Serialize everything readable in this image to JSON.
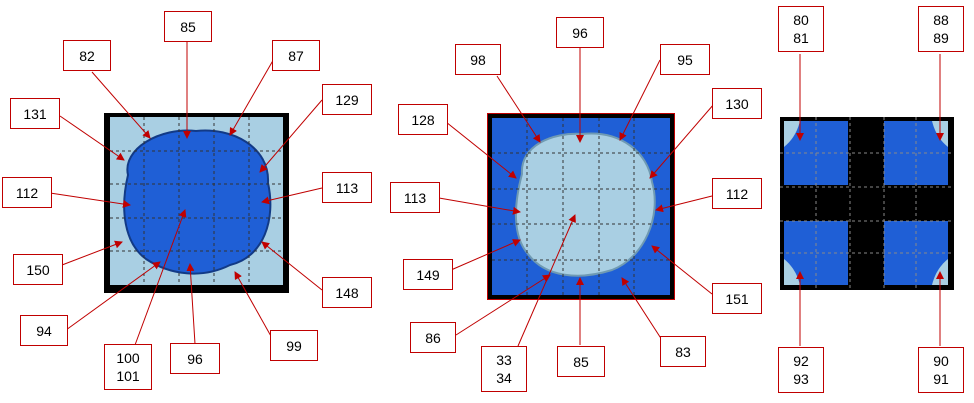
{
  "panels": [
    {
      "id": "p1",
      "labels": [
        {
          "id": "l82",
          "lines": [
            "82"
          ]
        },
        {
          "id": "l85",
          "lines": [
            "85"
          ]
        },
        {
          "id": "l87",
          "lines": [
            "87"
          ]
        },
        {
          "id": "l131",
          "lines": [
            "131"
          ]
        },
        {
          "id": "l129",
          "lines": [
            "129"
          ]
        },
        {
          "id": "l112",
          "lines": [
            "112"
          ]
        },
        {
          "id": "l113",
          "lines": [
            "113"
          ]
        },
        {
          "id": "l150",
          "lines": [
            "150"
          ]
        },
        {
          "id": "l148",
          "lines": [
            "148"
          ]
        },
        {
          "id": "l94",
          "lines": [
            "94"
          ]
        },
        {
          "id": "l100",
          "lines": [
            "100",
            "101"
          ]
        },
        {
          "id": "l96",
          "lines": [
            "96"
          ]
        },
        {
          "id": "l99",
          "lines": [
            "99"
          ]
        }
      ]
    },
    {
      "id": "p2",
      "labels": [
        {
          "id": "l98",
          "lines": [
            "98"
          ]
        },
        {
          "id": "l96b",
          "lines": [
            "96"
          ]
        },
        {
          "id": "l95",
          "lines": [
            "95"
          ]
        },
        {
          "id": "l128",
          "lines": [
            "128"
          ]
        },
        {
          "id": "l130",
          "lines": [
            "130"
          ]
        },
        {
          "id": "l113b",
          "lines": [
            "113"
          ]
        },
        {
          "id": "l112b",
          "lines": [
            "112"
          ]
        },
        {
          "id": "l149",
          "lines": [
            "149"
          ]
        },
        {
          "id": "l151",
          "lines": [
            "151"
          ]
        },
        {
          "id": "l86",
          "lines": [
            "86"
          ]
        },
        {
          "id": "l33",
          "lines": [
            "33",
            "34"
          ]
        },
        {
          "id": "l85b",
          "lines": [
            "85"
          ]
        },
        {
          "id": "l83",
          "lines": [
            "83"
          ]
        }
      ]
    },
    {
      "id": "p3",
      "labels": [
        {
          "id": "l80",
          "lines": [
            "80",
            "81"
          ]
        },
        {
          "id": "l88",
          "lines": [
            "88",
            "89"
          ]
        },
        {
          "id": "l92",
          "lines": [
            "92",
            "93"
          ]
        },
        {
          "id": "l90",
          "lines": [
            "90",
            "91"
          ]
        }
      ]
    }
  ],
  "colors": {
    "water": "#1f5fd6",
    "ice": "#a9cfe3",
    "border": "#000000",
    "label_border": "#c00000",
    "arrow": "#c00000"
  }
}
